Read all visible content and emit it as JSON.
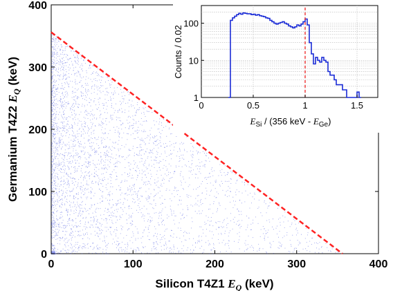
{
  "chart_data": [
    {
      "type": "scatter",
      "title": "",
      "xlabel": {
        "prefix": "Silicon T4Z1 ",
        "var": "E",
        "sub": "Q",
        "suffix": " (keV)"
      },
      "ylabel": {
        "prefix": "Germanium T4Z2 ",
        "var": "E",
        "sub": "Q",
        "suffix": " (keV)"
      },
      "xlim": [
        0,
        400
      ],
      "ylim": [
        0,
        400
      ],
      "xticks": [
        "0",
        "100",
        "200",
        "300",
        "400"
      ],
      "yticks": [
        "0",
        "100",
        "200",
        "300",
        "400"
      ],
      "grid": false,
      "point_color": "#3344dd",
      "density_description": "dense cloud of events below the line E_Si + E_Ge = 356 keV, densest at low silicon energy",
      "reference_line": {
        "x": [
          0,
          356
        ],
        "y": [
          356,
          0
        ],
        "style": "dashed",
        "color": "#ff2222"
      },
      "note": "point positions are generated procedurally to mimic the event density"
    },
    {
      "type": "line",
      "title": "",
      "xlabel": {
        "var1": "E",
        "sub1": "Si",
        "mid": " / (356 keV - ",
        "var2": "E",
        "sub2": "Ge",
        "end": ")"
      },
      "ylabel": "Counts / 0.02",
      "xlim": [
        0,
        1.7
      ],
      "ylim": [
        1,
        300
      ],
      "yscale": "log",
      "xticks": [
        "0",
        "0.5",
        "1",
        "1.5"
      ],
      "yticks": [
        "1",
        "10",
        "100"
      ],
      "grid": true,
      "line_color": "#1a2bd6",
      "reference_line": {
        "x": 1.0,
        "style": "dashed",
        "color": "#ee2222"
      },
      "series": [
        {
          "step": "post",
          "x": [
            0.26,
            0.28,
            0.3,
            0.32,
            0.34,
            0.36,
            0.38,
            0.4,
            0.42,
            0.44,
            0.46,
            0.48,
            0.5,
            0.52,
            0.54,
            0.56,
            0.58,
            0.6,
            0.62,
            0.64,
            0.66,
            0.68,
            0.7,
            0.72,
            0.74,
            0.76,
            0.78,
            0.8,
            0.82,
            0.84,
            0.86,
            0.88,
            0.9,
            0.92,
            0.94,
            0.96,
            0.98,
            1.0,
            1.02,
            1.04,
            1.06,
            1.08,
            1.1,
            1.12,
            1.14,
            1.16,
            1.18,
            1.2,
            1.22,
            1.24,
            1.26,
            1.28,
            1.3,
            1.32,
            1.34,
            1.36,
            1.38,
            1.4,
            1.42,
            1.44,
            1.46,
            1.48,
            1.5,
            1.52
          ],
          "y": [
            1,
            120,
            140,
            155,
            170,
            185,
            175,
            190,
            185,
            180,
            180,
            170,
            175,
            165,
            170,
            160,
            155,
            150,
            140,
            135,
            120,
            110,
            100,
            95,
            100,
            105,
            110,
            100,
            95,
            85,
            80,
            75,
            80,
            90,
            85,
            95,
            110,
            130,
            90,
            30,
            15,
            8,
            12,
            10,
            9,
            12,
            10,
            9,
            5,
            4,
            4,
            3,
            2.2,
            2.2,
            2.2,
            1.6,
            1.6,
            1,
            1,
            1,
            1,
            1,
            1.4,
            1
          ]
        }
      ]
    }
  ]
}
